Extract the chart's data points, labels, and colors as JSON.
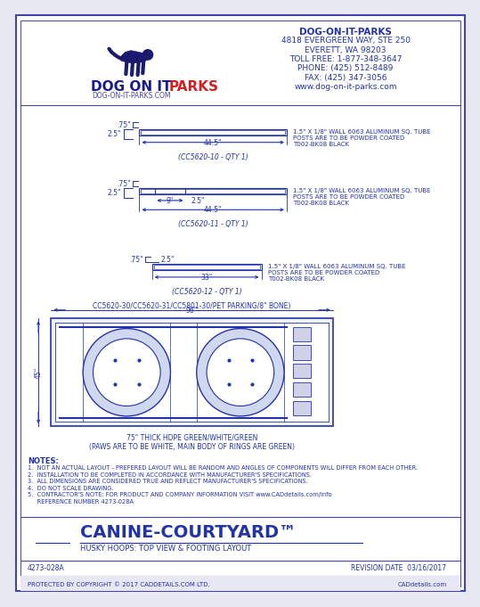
{
  "bg_color": "#e8e8f0",
  "border_color": "#4444aa",
  "main_color": "#2233aa",
  "page_bg": "#ffffff",
  "company_name": "DOG-ON-IT-PARKS",
  "address1": "4818 EVERGREEN WAY, STE 250",
  "address2": "EVERETT, WA 98203",
  "toll_free": "TOLL FREE: 1-877-348-3647",
  "phone": "PHONE: (425) 512-8489",
  "fax": "FAX: (425) 347-3056",
  "website": "www.dog-on-it-parks.com",
  "dog_website": "DOG-ON-IT-PARKS.COM",
  "logo_text1": "DOG ON IT",
  "logo_text2": "PARKS",
  "product_name": "CANINE-COURTYARD™",
  "subtitle": "HUSKY HOOPS: TOP VIEW & FOOTING LAYOUT",
  "part_num1": "(CC5620-10 - QTY 1)",
  "part_num2": "(CC5620-11 - QTY 1)",
  "part_num3": "(CC5620-12 - QTY 1)",
  "top_label": "CC5620-30/CC5620-31/CC5801-30/PET PARKING/8\" BONE)",
  "dim_96": "96\"",
  "dim_45": "45\"",
  "dim_75a": ".75\"",
  "dim_25a": "2.5\"",
  "dim_445a": "44.5\"",
  "dim_75b": ".75\"",
  "dim_25b": "2.5\"",
  "dim_9": "9\"",
  "dim_25c": "2.5\"",
  "dim_445b": "44.5\"",
  "dim_75c": ".75\"",
  "dim_25d": "2.5\"",
  "dim_33": "33\"",
  "tube_note": "1.5\" X 1/8\" WALL 6063 ALUMINUM SQ. TUBE\nPOSTS ARE TO BE POWDER COATED\nT002-BK08 BLACK",
  "thickness_note": "75\" THICK HDPE GREEN/WHITE/GREEN\n(PAWS ARE TO BE WHITE, MAIN BODY OF RINGS ARE GREEN)",
  "notes_title": "NOTES:",
  "note1": "1.  NOT AN ACTUAL LAYOUT - PREFERED LAYOUT WILL BE RANDOM AND ANGLES OF COMPONENTS WILL DIFFER FROM EACH OTHER.",
  "note2": "2.  INSTALLATION TO BE COMPLETED IN ACCORDANCE WITH MANUFACTURER'S SPECIFICATIONS.",
  "note3": "3.  ALL DIMENSIONS ARE CONSIDERED TRUE AND REFLECT MANUFACTURER'S SPECIFICATIONS.",
  "note4": "4.  DO NOT SCALE DRAWING.",
  "note5": "5.  CONTRACTOR'S NOTE: FOR PRODUCT AND COMPANY INFORMATION VISIT www.CADdetails.com/info",
  "note5b": "     REFERENCE NUMBER 4273-028A",
  "ref_num": "4273-028A",
  "revision": "REVISION DATE  03/16/2017",
  "copyright": "PROTECTED BY COPYRIGHT © 2017 CADDETAILS.COM LTD.",
  "cad_website": "CADdetails.com"
}
